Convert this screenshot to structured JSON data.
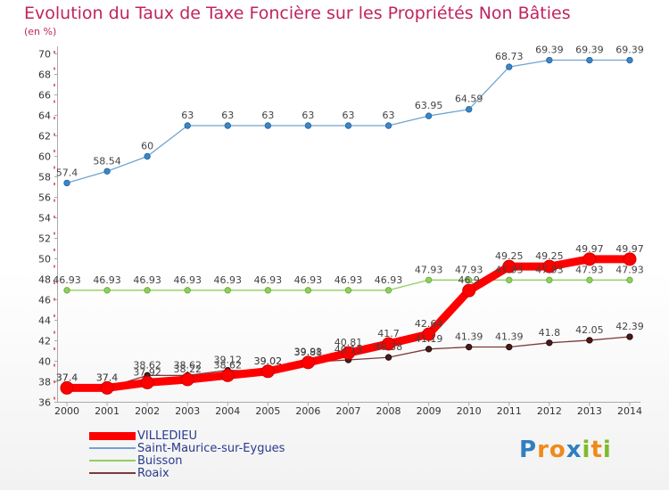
{
  "title": "Evolution du Taux de Taxe Foncière sur les Propriétés Non Bâties",
  "unit_label": "(en %)",
  "logo": {
    "letters": [
      "P",
      "r",
      "o",
      "x",
      "i",
      "t",
      "i"
    ],
    "colors": [
      "#2f7fc1",
      "#f08a1c",
      "#f08a1c",
      "#2f7fc1",
      "#7dbb2a",
      "#f08a1c",
      "#7dbb2a"
    ]
  },
  "chart_data": {
    "type": "line",
    "title": "Evolution du Taux de Taxe Foncière sur les Propriétés Non Bâties",
    "ylabel": "(en %)",
    "xlabel": "",
    "ylim": [
      36,
      70
    ],
    "yticks": [
      36,
      38,
      40,
      42,
      44,
      46,
      48,
      50,
      52,
      54,
      56,
      58,
      60,
      62,
      64,
      66,
      68,
      70
    ],
    "categories": [
      "2000",
      "2001",
      "2002",
      "2003",
      "2004",
      "2005",
      "2006",
      "2007",
      "2008",
      "2009",
      "2010",
      "2011",
      "2012",
      "2013",
      "2014"
    ],
    "series": [
      {
        "name": "VILLEDIEU",
        "color": "#ff0000",
        "values": [
          37.4,
          37.4,
          37.92,
          38.22,
          38.62,
          39.02,
          39.88,
          40.81,
          41.7,
          42.64,
          46.9,
          49.25,
          49.25,
          49.97,
          49.97
        ],
        "labels": [
          "37.4",
          "37.4",
          "37.92",
          "38.22",
          "38.62",
          "39.02",
          "39.88",
          "40.81",
          "41.7",
          "42.64",
          "46.9",
          "49.25",
          "49.25",
          "49.97",
          "49.97"
        ]
      },
      {
        "name": "Saint-Maurice-sur-Eygues",
        "color": "#6fa3d1",
        "values": [
          57.4,
          58.54,
          60,
          63,
          63,
          63,
          63,
          63,
          63,
          63.95,
          64.59,
          68.73,
          69.39,
          69.39,
          69.39
        ],
        "labels": [
          "57.4",
          "58.54",
          "60",
          "63",
          "63",
          "63",
          "63",
          "63",
          "63",
          "63.95",
          "64.59",
          "68.73",
          "69.39",
          "69.39",
          "69.39"
        ]
      },
      {
        "name": "Buisson",
        "color": "#8fcf5f",
        "values": [
          46.93,
          46.93,
          46.93,
          46.93,
          46.93,
          46.93,
          46.93,
          46.93,
          46.93,
          47.93,
          47.93,
          47.93,
          47.93,
          47.93,
          47.93
        ],
        "labels": [
          "46.93",
          "46.93",
          "46.93",
          "46.93",
          "46.93",
          "46.93",
          "46.93",
          "46.93",
          "46.93",
          "47.93",
          "47.93",
          "47.93",
          "47.93",
          "47.93",
          "47.93"
        ]
      },
      {
        "name": "Roaix",
        "color": "#7b3a3a",
        "values": [
          37.4,
          37.4,
          38.62,
          38.62,
          39.12,
          39.02,
          39.91,
          40.13,
          40.38,
          41.19,
          41.39,
          41.39,
          41.8,
          42.05,
          42.39
        ],
        "labels": [
          "37.4",
          "37.4",
          "38.62",
          "38.62",
          "39.12",
          "39.02",
          "39.91",
          "40.13",
          "40.38",
          "41.19",
          "41.39",
          "41.39",
          "41.8",
          "42.05",
          "42.39"
        ]
      }
    ],
    "legend": "bottom-left",
    "grid": false
  }
}
